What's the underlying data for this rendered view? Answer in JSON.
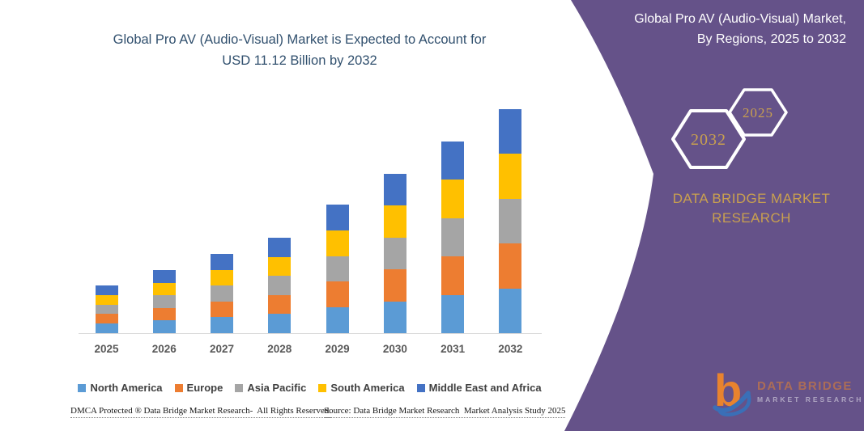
{
  "header": {
    "title_line1": "Global Pro AV (Audio-Visual) Market is Expected to Account for",
    "title_line2": "USD 11.12 Billion by 2032"
  },
  "side_panel": {
    "background_color": "#655289",
    "accent_gold": "#c9a04f",
    "title_line1": "Global Pro AV (Audio-Visual) Market,",
    "title_line2": "By Regions, 2025 to 2032",
    "hexagon_back_label": "2032",
    "hexagon_front_label": "2025",
    "brand_line1": "DATA BRIDGE MARKET",
    "brand_line2": "RESEARCH",
    "logo_primary": "DATA BRIDGE",
    "logo_secondary": "MARKET RESEARCH"
  },
  "chart_data": {
    "type": "bar",
    "stacked": true,
    "title": "Global Pro AV (Audio-Visual) Market is Expected to Account for USD 11.12 Billion by 2032",
    "unit": "USD Billion",
    "categories": [
      "2025",
      "2026",
      "2027",
      "2028",
      "2029",
      "2030",
      "2031",
      "2032"
    ],
    "series": [
      {
        "name": "North America",
        "color": "#5B9BD5",
        "values": [
          0.474,
          0.626,
          0.786,
          0.948,
          1.276,
          1.582,
          1.904,
          2.224
        ]
      },
      {
        "name": "Europe",
        "color": "#ED7D31",
        "values": [
          0.474,
          0.626,
          0.786,
          0.948,
          1.276,
          1.582,
          1.904,
          2.224
        ]
      },
      {
        "name": "Asia Pacific",
        "color": "#A5A5A5",
        "values": [
          0.474,
          0.626,
          0.786,
          0.948,
          1.276,
          1.582,
          1.904,
          2.224
        ]
      },
      {
        "name": "South America",
        "color": "#FFC000",
        "values": [
          0.474,
          0.626,
          0.786,
          0.948,
          1.276,
          1.582,
          1.904,
          2.224
        ]
      },
      {
        "name": "Middle East and Africa",
        "color": "#4472C4",
        "values": [
          0.474,
          0.626,
          0.786,
          0.948,
          1.276,
          1.582,
          1.904,
          2.224
        ]
      }
    ],
    "totals": [
      2.37,
      3.13,
      3.93,
      4.74,
      6.38,
      7.91,
      9.52,
      11.12
    ],
    "ylim": [
      0,
      11.5
    ],
    "gridlines": false,
    "y_axis_visible": false,
    "legend_position": "bottom",
    "annotation": "USD 11.12 Billion by 2032"
  },
  "footer": {
    "left": "DMCA Protected ® Data Bridge Market Research-  All Rights Reserved.",
    "source": "Source: Data Bridge Market Research  Market Analysis Study 2025"
  }
}
